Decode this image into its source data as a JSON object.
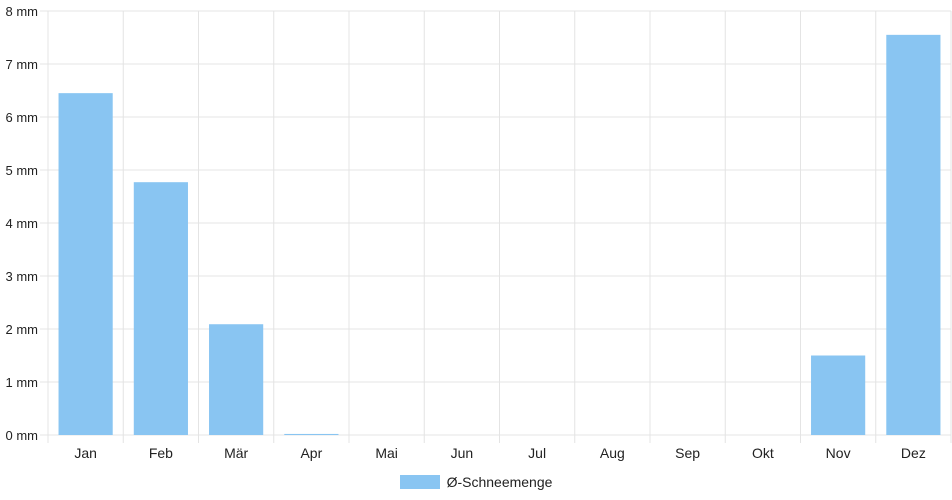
{
  "chart_data": {
    "type": "bar",
    "categories": [
      "Jan",
      "Feb",
      "Mär",
      "Apr",
      "Mai",
      "Jun",
      "Jul",
      "Aug",
      "Sep",
      "Okt",
      "Nov",
      "Dez"
    ],
    "series": [
      {
        "name": "Ø-Schneemenge",
        "values": [
          6.45,
          4.77,
          2.09,
          0.02,
          0,
          0,
          0,
          0,
          0,
          0,
          1.5,
          7.55
        ],
        "color": "#89c5f2"
      }
    ],
    "y_ticks": [
      "0 mm",
      "1 mm",
      "2 mm",
      "3 mm",
      "4 mm",
      "5 mm",
      "6 mm",
      "7 mm",
      "8 mm"
    ],
    "ylim": [
      0,
      8
    ],
    "grid": true,
    "legend_position": "bottom"
  }
}
